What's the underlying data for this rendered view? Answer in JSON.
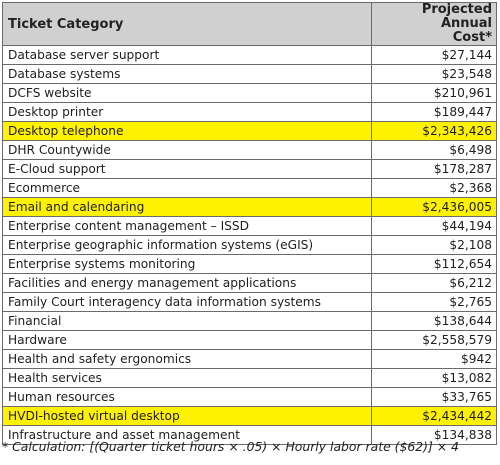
{
  "table": {
    "headers": {
      "category": "Ticket Category",
      "cost": "Projected Annual Cost*"
    },
    "highlight_color": "#fff200",
    "header_background": "#d0d0d0",
    "rows": [
      {
        "category": "Database server support",
        "cost": "$27,144",
        "highlight": false
      },
      {
        "category": "Database systems",
        "cost": "$23,548",
        "highlight": false
      },
      {
        "category": "DCFS website",
        "cost": "$210,961",
        "highlight": false
      },
      {
        "category": "Desktop printer",
        "cost": "$189,447",
        "highlight": false
      },
      {
        "category": "Desktop telephone",
        "cost": "$2,343,426",
        "highlight": true
      },
      {
        "category": "DHR Countywide",
        "cost": "$6,498",
        "highlight": false
      },
      {
        "category": "E-Cloud support",
        "cost": "$178,287",
        "highlight": false
      },
      {
        "category": "Ecommerce",
        "cost": "$2,368",
        "highlight": false
      },
      {
        "category": "Email and calendaring",
        "cost": "$2,436,005",
        "highlight": true
      },
      {
        "category": "Enterprise content management – ISSD",
        "cost": "$44,194",
        "highlight": false
      },
      {
        "category": "Enterprise geographic information systems (eGIS)",
        "cost": "$2,108",
        "highlight": false
      },
      {
        "category": "Enterprise systems monitoring",
        "cost": "$112,654",
        "highlight": false
      },
      {
        "category": "Facilities and energy management applications",
        "cost": "$6,212",
        "highlight": false
      },
      {
        "category": "Family Court interagency data information systems",
        "cost": "$2,765",
        "highlight": false
      },
      {
        "category": "Financial",
        "cost": "$138,644",
        "highlight": false
      },
      {
        "category": "Hardware",
        "cost": "$2,558,579",
        "highlight": false
      },
      {
        "category": "Health and safety ergonomics",
        "cost": "$942",
        "highlight": false
      },
      {
        "category": "Health services",
        "cost": "$13,082",
        "highlight": false
      },
      {
        "category": "Human resources",
        "cost": "$33,765",
        "highlight": false
      },
      {
        "category": "HVDI-hosted virtual desktop",
        "cost": "$2,434,442",
        "highlight": true
      },
      {
        "category": "Infrastructure and asset management",
        "cost": "$134,838",
        "highlight": false
      }
    ]
  },
  "footnote": "* Calculation: [(Quarter ticket hours × .05) × Hourly labor rate ($62)] × 4"
}
